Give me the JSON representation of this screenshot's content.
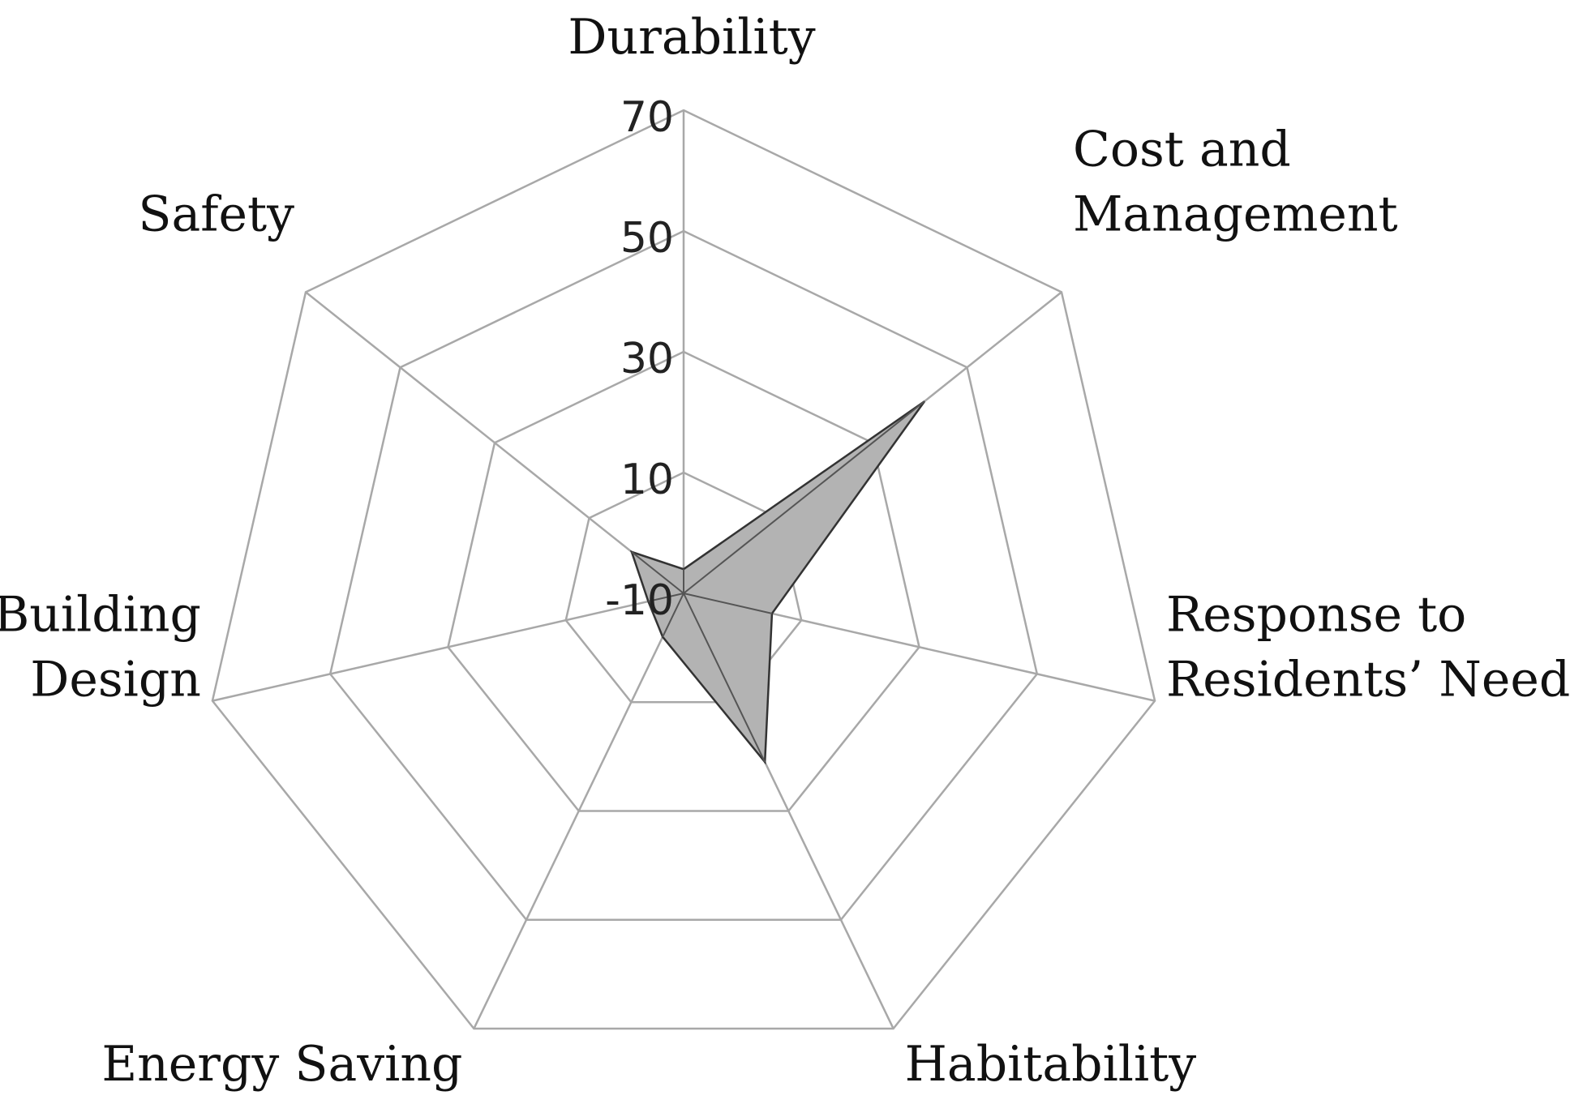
{
  "chart_data": {
    "type": "radar",
    "categories": [
      "Durability",
      "Cost and Management",
      "Response to Residents’ Needs",
      "Habitability",
      "Energy Saving",
      "Building Design",
      "Safety"
    ],
    "category_label_lines": [
      [
        "Durability"
      ],
      [
        "Cost and",
        "Management"
      ],
      [
        "Response to",
        "Residents’ Needs"
      ],
      [
        "Habitability"
      ],
      [
        "Energy Saving"
      ],
      [
        "Building",
        "Design"
      ],
      [
        "Safety"
      ]
    ],
    "values": [
      -6,
      41,
      5,
      21,
      -2,
      -4,
      1
    ],
    "rlim": [
      -10,
      70
    ],
    "ticks": [
      -10,
      10,
      30,
      50,
      70
    ],
    "tick_labels": [
      "-10",
      "10",
      "30",
      "50",
      "70"
    ],
    "grid": true,
    "colors": {
      "fill": "#b3b3b3",
      "stroke": "#333333",
      "grid": "#a8a8a8"
    }
  }
}
